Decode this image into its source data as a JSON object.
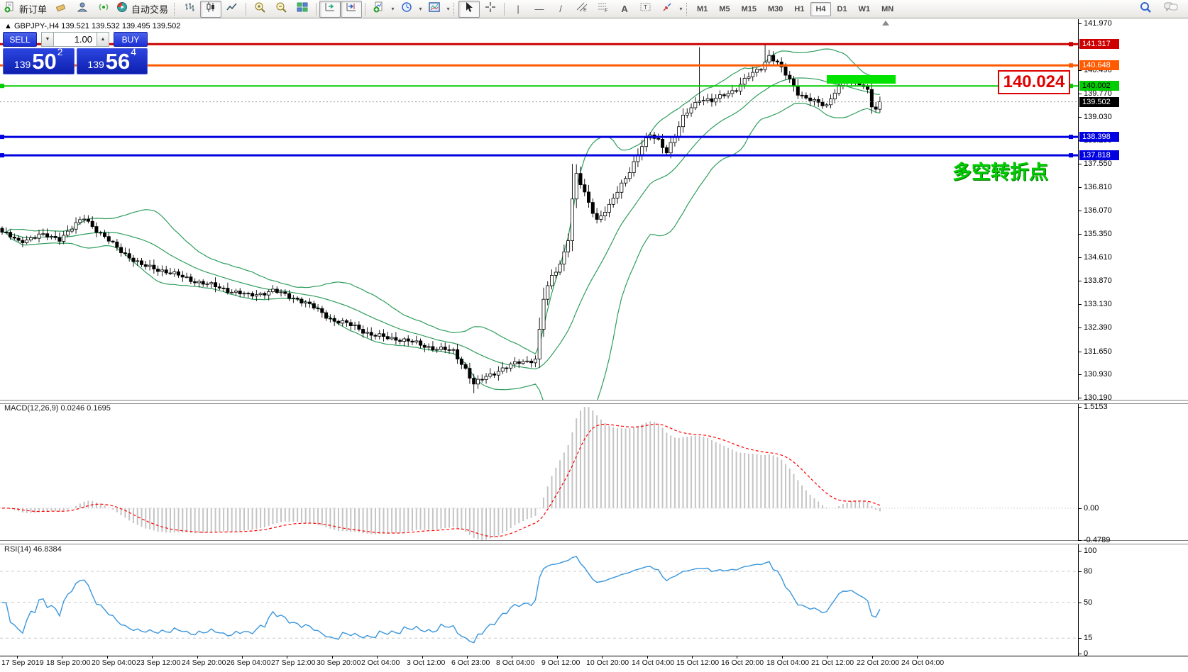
{
  "toolbar": {
    "new_order_label": "新订单",
    "autotrading_label": "自动交易",
    "timeframes": [
      "M1",
      "M5",
      "M15",
      "M30",
      "H1",
      "H4",
      "D1",
      "W1",
      "MN"
    ],
    "active_timeframe": "H4",
    "drawing_letters": {
      "vline": "|",
      "hline": "—",
      "trend": "/",
      "channel": "E",
      "fibo": "F",
      "text": "A",
      "label": "T"
    }
  },
  "chart": {
    "symbol_header": "GBPJPY-,H4  139.521 139.532 139.495 139.502",
    "one_click": {
      "sell_label": "SELL",
      "buy_label": "BUY",
      "volume": "1.00",
      "bid_prefix": "139",
      "bid_big": "50",
      "bid_sup": "2",
      "ask_prefix": "139",
      "ask_big": "56",
      "ask_sup": "4"
    },
    "price_axis_ticks": [
      "141.970",
      "141.230",
      "140.490",
      "139.770",
      "139.030",
      "138.290",
      "137.550",
      "136.810",
      "136.070",
      "135.350",
      "134.610",
      "133.870",
      "133.130",
      "132.390",
      "131.650",
      "130.930",
      "130.190"
    ],
    "levels": [
      {
        "label": "141.317",
        "price": 141.317,
        "color": "#cc0000",
        "text_color": "#ffffff",
        "thickness": 3,
        "left_handle": false
      },
      {
        "label": "140.648",
        "price": 140.648,
        "color": "#ff5a00",
        "text_color": "#ffffff",
        "thickness": 3,
        "left_handle": false
      },
      {
        "label": "140.002",
        "price": 140.002,
        "color": "#00cc00",
        "text_color": "#000000",
        "thickness": 2,
        "left_handle": true
      },
      {
        "label": "138.398",
        "price": 138.398,
        "color": "#0000e0",
        "text_color": "#ffffff",
        "thickness": 3,
        "left_handle": true
      },
      {
        "label": "137.818",
        "price": 137.818,
        "color": "#0000e0",
        "text_color": "#ffffff",
        "thickness": 3,
        "left_handle": true
      }
    ],
    "current_price": {
      "label": "139.502",
      "price": 139.502,
      "bg": "#000000",
      "text_color": "#ffffff"
    },
    "annotations": {
      "price_callout": "140.024",
      "cjk_note": "多空转折点"
    }
  },
  "macd_panel": {
    "label": "MACD(12,26,9) 0.0246 0.1695",
    "axis_ticks": [
      "1.5153",
      "0.00",
      "-0.4789"
    ],
    "ylim": [
      -0.4789,
      1.5153
    ]
  },
  "rsi_panel": {
    "label": "RSI(14) 46.8384",
    "axis_ticks": [
      {
        "v": 100,
        "t": "100"
      },
      {
        "v": 80,
        "t": "80"
      },
      {
        "v": 50,
        "t": "50"
      },
      {
        "v": 15,
        "t": "15"
      },
      {
        "v": 0,
        "t": "0"
      }
    ],
    "dashed_levels": [
      80,
      50,
      15
    ]
  },
  "time_axis": [
    "17 Sep 2019",
    "18 Sep 20:00",
    "20 Sep 04:00",
    "23 Sep 12:00",
    "24 Sep 20:00",
    "26 Sep 04:00",
    "27 Sep 12:00",
    "30 Sep 20:00",
    "2 Oct 04:00",
    "3 Oct 12:00",
    "6 Oct 23:00",
    "8 Oct 04:00",
    "9 Oct 12:00",
    "10 Oct 20:00",
    "14 Oct 04:00",
    "15 Oct 12:00",
    "16 Oct 20:00",
    "18 Oct 04:00",
    "21 Oct 12:00",
    "22 Oct 20:00",
    "24 Oct 04:00"
  ],
  "colors": {
    "bands": "#2f9e5e",
    "candle_up_fill": "#ffffff",
    "candle_down_fill": "#000000",
    "candle_border": "#000000",
    "macd_hist": "#c4c4c4",
    "macd_signal": "#ff0000",
    "rsi_line": "#3a96dd",
    "highlight_green": "#00e400",
    "callout_red": "#dd0000",
    "cjk_green": "#00cc00",
    "panel_blue": "#1b2fd4"
  },
  "chart_data": {
    "type": "candlestick",
    "symbol": "GBPJPY",
    "timeframe": "H4",
    "title": "GBPJPY-,H4",
    "ohlc_last": {
      "open": 139.521,
      "high": 139.532,
      "low": 139.495,
      "close": 139.502
    },
    "ylim": [
      130.19,
      141.97
    ],
    "bars": 215,
    "close_anchors": [
      [
        0,
        135.4
      ],
      [
        4,
        135.1
      ],
      [
        9,
        135.3
      ],
      [
        14,
        135.2
      ],
      [
        20,
        135.85
      ],
      [
        24,
        135.35
      ],
      [
        28,
        134.9
      ],
      [
        34,
        134.35
      ],
      [
        39,
        134.2
      ],
      [
        46,
        133.9
      ],
      [
        53,
        133.65
      ],
      [
        60,
        133.4
      ],
      [
        66,
        133.55
      ],
      [
        72,
        133.3
      ],
      [
        77,
        132.95
      ],
      [
        81,
        132.6
      ],
      [
        86,
        132.45
      ],
      [
        90,
        132.15
      ],
      [
        96,
        132.05
      ],
      [
        101,
        131.9
      ],
      [
        105,
        131.75
      ],
      [
        110,
        131.65
      ],
      [
        113,
        131.1
      ],
      [
        115,
        130.6
      ],
      [
        118,
        130.85
      ],
      [
        121,
        131.05
      ],
      [
        126,
        131.3
      ],
      [
        130,
        131.4
      ],
      [
        131,
        132.3
      ],
      [
        132,
        133.3
      ],
      [
        134,
        134.0
      ],
      [
        136,
        134.4
      ],
      [
        138,
        135.2
      ],
      [
        139,
        136.4
      ],
      [
        140,
        137.2
      ],
      [
        142,
        136.6
      ],
      [
        145,
        135.8
      ],
      [
        148,
        136.2
      ],
      [
        151,
        136.9
      ],
      [
        153,
        137.35
      ],
      [
        156,
        138.1
      ],
      [
        158,
        138.45
      ],
      [
        160,
        138.3
      ],
      [
        162,
        137.95
      ],
      [
        164,
        138.4
      ],
      [
        166,
        139.0
      ],
      [
        168,
        139.35
      ],
      [
        170,
        139.6
      ],
      [
        173,
        139.5
      ],
      [
        176,
        139.75
      ],
      [
        179,
        139.9
      ],
      [
        182,
        140.3
      ],
      [
        185,
        140.6
      ],
      [
        187,
        140.95
      ],
      [
        189,
        140.7
      ],
      [
        192,
        140.2
      ],
      [
        194,
        139.8
      ],
      [
        196,
        139.6
      ],
      [
        199,
        139.45
      ],
      [
        201,
        139.4
      ],
      [
        203,
        139.85
      ],
      [
        205,
        140.1
      ],
      [
        207,
        140.15
      ],
      [
        209,
        140.05
      ],
      [
        211,
        139.9
      ],
      [
        212,
        139.35
      ],
      [
        213,
        139.25
      ],
      [
        214,
        139.502
      ]
    ],
    "wick_overrides": {
      "115": {
        "low": 130.33
      },
      "139": {
        "high": 137.55
      },
      "170": {
        "high": 141.22
      },
      "186": {
        "high": 141.31
      }
    },
    "indicators": {
      "bollinger": {
        "period": 20,
        "deviation": 2
      },
      "macd": {
        "fast": 12,
        "slow": 26,
        "signal": 9,
        "current_main": 0.0246,
        "current_signal": 0.1695
      },
      "rsi": {
        "period": 14,
        "current": 46.8384
      }
    }
  }
}
